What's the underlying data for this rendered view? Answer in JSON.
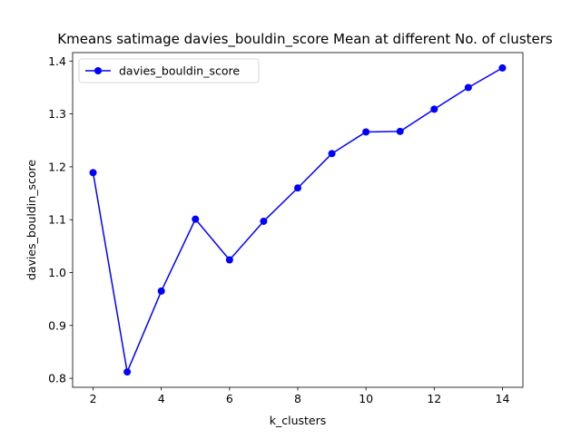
{
  "chart_data": {
    "type": "line",
    "title": "Kmeans satimage davies_bouldin_score Mean at different No. of clusters",
    "xlabel": "k_clusters",
    "ylabel": "davies_bouldin_score",
    "xlim": [
      1.4,
      14.6
    ],
    "ylim": [
      0.783,
      1.416
    ],
    "xticks": [
      2,
      4,
      6,
      8,
      10,
      12,
      14
    ],
    "yticks": [
      0.8,
      0.9,
      1.0,
      1.1,
      1.2,
      1.3,
      1.4
    ],
    "yticks_labels": [
      "0.8",
      "0.9",
      "1.0",
      "1.1",
      "1.2",
      "1.3",
      "1.4"
    ],
    "grid": false,
    "legend_position": "top-left",
    "series": [
      {
        "name": "davies_bouldin_score",
        "color": "#0000ff",
        "marker": "circle",
        "x": [
          2,
          3,
          4,
          5,
          6,
          7,
          8,
          9,
          10,
          11,
          12,
          13,
          14
        ],
        "y": [
          1.189,
          0.812,
          0.965,
          1.101,
          1.024,
          1.097,
          1.16,
          1.225,
          1.266,
          1.267,
          1.309,
          1.35,
          1.387
        ]
      }
    ]
  }
}
